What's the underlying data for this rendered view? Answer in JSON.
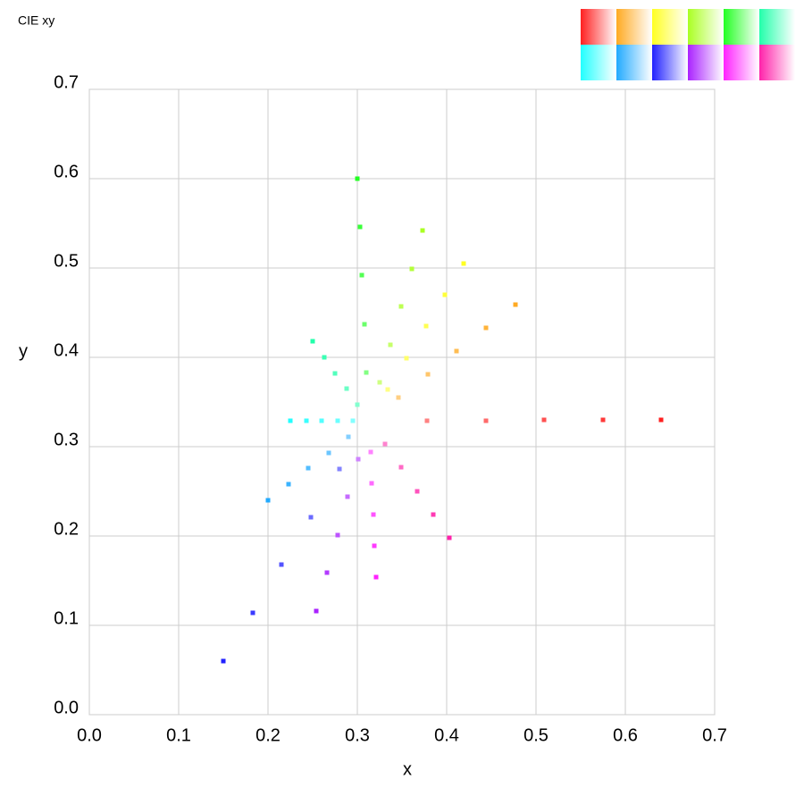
{
  "chart_data": {
    "type": "scatter",
    "title": "CIE xy",
    "xlabel": "x",
    "ylabel": "y",
    "xlim": [
      0,
      0.7
    ],
    "ylim": [
      0,
      0.7
    ],
    "xticks": [
      {
        "value": 0,
        "label": "0.0"
      },
      0.1,
      0.2,
      0.3,
      0.4,
      0.5,
      0.6,
      0.7
    ],
    "yticks": [
      {
        "value": 0,
        "label": "0.0"
      },
      0.1,
      0.2,
      0.3,
      0.4,
      0.5,
      0.6,
      0.7
    ],
    "grid": true,
    "series": [
      {
        "color": "#ff2020",
        "x": [
          0.378,
          0.444,
          0.509,
          0.575,
          0.64
        ],
        "y": [
          0.329,
          0.329,
          0.33,
          0.33,
          0.33
        ]
      },
      {
        "color": "#ffaa22",
        "x": [
          0.346,
          0.379,
          0.411,
          0.444,
          0.477
        ],
        "y": [
          0.355,
          0.381,
          0.407,
          0.433,
          0.459
        ]
      },
      {
        "color": "#ffff22",
        "x": [
          0.334,
          0.355,
          0.377,
          0.398,
          0.419
        ],
        "y": [
          0.364,
          0.399,
          0.435,
          0.47,
          0.505
        ]
      },
      {
        "color": "#aaff22",
        "x": [
          0.325,
          0.337,
          0.349,
          0.361,
          0.373
        ],
        "y": [
          0.372,
          0.414,
          0.457,
          0.499,
          0.542
        ]
      },
      {
        "color": "#22ff22",
        "x": [
          0.31,
          0.308,
          0.305,
          0.303,
          0.3
        ],
        "y": [
          0.383,
          0.437,
          0.492,
          0.546,
          0.6
        ]
      },
      {
        "color": "#22ffaa",
        "x": [
          0.3,
          0.288,
          0.275,
          0.263,
          0.25
        ],
        "y": [
          0.347,
          0.365,
          0.382,
          0.4,
          0.418
        ]
      },
      {
        "color": "#22ffff",
        "x": [
          0.295,
          0.278,
          0.26,
          0.243,
          0.225
        ],
        "y": [
          0.329,
          0.329,
          0.329,
          0.329,
          0.329
        ]
      },
      {
        "color": "#22aaff",
        "x": [
          0.29,
          0.268,
          0.245,
          0.223,
          0.2
        ],
        "y": [
          0.311,
          0.293,
          0.276,
          0.258,
          0.24
        ]
      },
      {
        "color": "#2222ff",
        "x": [
          0.28,
          0.248,
          0.215,
          0.183,
          0.15
        ],
        "y": [
          0.275,
          0.221,
          0.168,
          0.114,
          0.06
        ]
      },
      {
        "color": "#aa22ff",
        "x": [
          0.301,
          0.289,
          0.278,
          0.266,
          0.254
        ],
        "y": [
          0.286,
          0.244,
          0.201,
          0.159,
          0.116
        ]
      },
      {
        "color": "#ff22ff",
        "x": [
          0.315,
          0.316,
          0.318,
          0.319,
          0.321
        ],
        "y": [
          0.294,
          0.259,
          0.224,
          0.189,
          0.154
        ]
      },
      {
        "color": "#ff22aa",
        "x": [
          0.331,
          0.349,
          0.367,
          0.385,
          0.403
        ],
        "y": [
          0.303,
          0.277,
          0.25,
          0.224,
          0.198
        ]
      }
    ]
  }
}
